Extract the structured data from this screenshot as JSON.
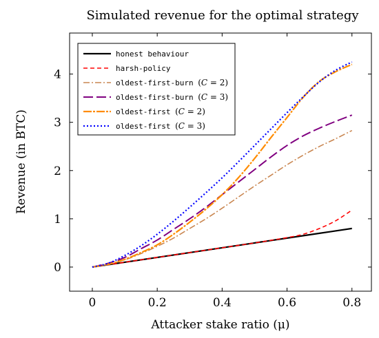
{
  "chart_data": {
    "type": "line",
    "title": "Simulated revenue for the optimal strategy",
    "xlabel": "Attacker stake ratio (μ)",
    "ylabel": "Revenue (in BTC)",
    "xlim": [
      -0.07,
      0.86
    ],
    "ylim": [
      -0.5,
      4.85
    ],
    "xticks": [
      0,
      0.2,
      0.4,
      0.6,
      0.8
    ],
    "xtick_labels": [
      "0",
      "0.2",
      "0.4",
      "0.6",
      "0.8"
    ],
    "yticks": [
      0,
      1,
      2,
      3,
      4
    ],
    "ytick_labels": [
      "0",
      "1",
      "2",
      "3",
      "4"
    ],
    "grid": false,
    "legend_position": "top-left",
    "series": [
      {
        "name": "honest behaviour",
        "label_parts": [
          {
            "t": "honest behaviour",
            "mono": true
          }
        ],
        "color": "#000000",
        "dash": "",
        "width": 2.2,
        "x": [
          0,
          0.1,
          0.2,
          0.3,
          0.4,
          0.5,
          0.6,
          0.7,
          0.8
        ],
        "y": [
          0,
          0.1,
          0.2,
          0.3,
          0.4,
          0.5,
          0.6,
          0.7,
          0.8
        ]
      },
      {
        "name": "harsh-policy",
        "label_parts": [
          {
            "t": "harsh-policy",
            "mono": true
          }
        ],
        "color": "#ff0000",
        "dash": "6,4",
        "width": 1.6,
        "x": [
          0,
          0.1,
          0.2,
          0.3,
          0.4,
          0.5,
          0.6,
          0.65,
          0.7,
          0.75,
          0.8
        ],
        "y": [
          0,
          0.1,
          0.2,
          0.3,
          0.4,
          0.5,
          0.61,
          0.68,
          0.8,
          0.96,
          1.18
        ]
      },
      {
        "name": "oldest-first-burn (C = 2)",
        "label_parts": [
          {
            "t": "oldest-first-burn ",
            "mono": true
          },
          {
            "t": "(",
            "mono": false
          },
          {
            "t": "C",
            "mono": false,
            "italic": true
          },
          {
            "t": " = 2)",
            "mono": false
          }
        ],
        "color": "#c98650",
        "dash": "9,3,2,3",
        "width": 1.6,
        "x": [
          0,
          0.05,
          0.1,
          0.15,
          0.2,
          0.25,
          0.3,
          0.35,
          0.4,
          0.45,
          0.5,
          0.55,
          0.6,
          0.65,
          0.7,
          0.75,
          0.8
        ],
        "y": [
          0,
          0.06,
          0.15,
          0.28,
          0.43,
          0.6,
          0.8,
          1.0,
          1.22,
          1.45,
          1.68,
          1.9,
          2.12,
          2.32,
          2.5,
          2.66,
          2.83
        ]
      },
      {
        "name": "oldest-first-burn (C = 3)",
        "label_parts": [
          {
            "t": "oldest-first-burn ",
            "mono": true
          },
          {
            "t": "(",
            "mono": false
          },
          {
            "t": "C",
            "mono": false,
            "italic": true
          },
          {
            "t": " = 3)",
            "mono": false
          }
        ],
        "color": "#800080",
        "dash": "14,5",
        "width": 2.0,
        "x": [
          0,
          0.05,
          0.1,
          0.15,
          0.2,
          0.25,
          0.3,
          0.35,
          0.4,
          0.45,
          0.5,
          0.55,
          0.6,
          0.65,
          0.7,
          0.75,
          0.8
        ],
        "y": [
          0,
          0.08,
          0.2,
          0.38,
          0.56,
          0.78,
          1.0,
          1.24,
          1.5,
          1.76,
          2.02,
          2.28,
          2.52,
          2.72,
          2.88,
          3.02,
          3.15
        ]
      },
      {
        "name": "oldest-first (C = 2)",
        "label_parts": [
          {
            "t": "oldest-first ",
            "mono": true
          },
          {
            "t": "(",
            "mono": false
          },
          {
            "t": "C",
            "mono": false,
            "italic": true
          },
          {
            "t": " = 2)",
            "mono": false
          }
        ],
        "color": "#ff8c00",
        "dash": "12,2,3,2",
        "width": 2.2,
        "x": [
          0,
          0.05,
          0.1,
          0.15,
          0.2,
          0.25,
          0.3,
          0.35,
          0.4,
          0.45,
          0.5,
          0.55,
          0.6,
          0.65,
          0.7,
          0.75,
          0.8
        ],
        "y": [
          0,
          0.06,
          0.16,
          0.3,
          0.46,
          0.68,
          0.93,
          1.2,
          1.5,
          1.85,
          2.25,
          2.68,
          3.1,
          3.52,
          3.85,
          4.05,
          4.2
        ]
      },
      {
        "name": "oldest-first (C = 3)",
        "label_parts": [
          {
            "t": "oldest-first ",
            "mono": true
          },
          {
            "t": "(",
            "mono": false
          },
          {
            "t": "C",
            "mono": false,
            "italic": true
          },
          {
            "t": " = 3)",
            "mono": false
          }
        ],
        "color": "#0000ff",
        "dash": "2,3",
        "width": 2.2,
        "x": [
          0,
          0.05,
          0.1,
          0.15,
          0.2,
          0.25,
          0.3,
          0.35,
          0.4,
          0.45,
          0.5,
          0.55,
          0.6,
          0.65,
          0.7,
          0.75,
          0.8
        ],
        "y": [
          0,
          0.08,
          0.24,
          0.44,
          0.68,
          0.95,
          1.24,
          1.54,
          1.85,
          2.18,
          2.52,
          2.86,
          3.2,
          3.53,
          3.84,
          4.08,
          4.25
        ]
      }
    ]
  }
}
